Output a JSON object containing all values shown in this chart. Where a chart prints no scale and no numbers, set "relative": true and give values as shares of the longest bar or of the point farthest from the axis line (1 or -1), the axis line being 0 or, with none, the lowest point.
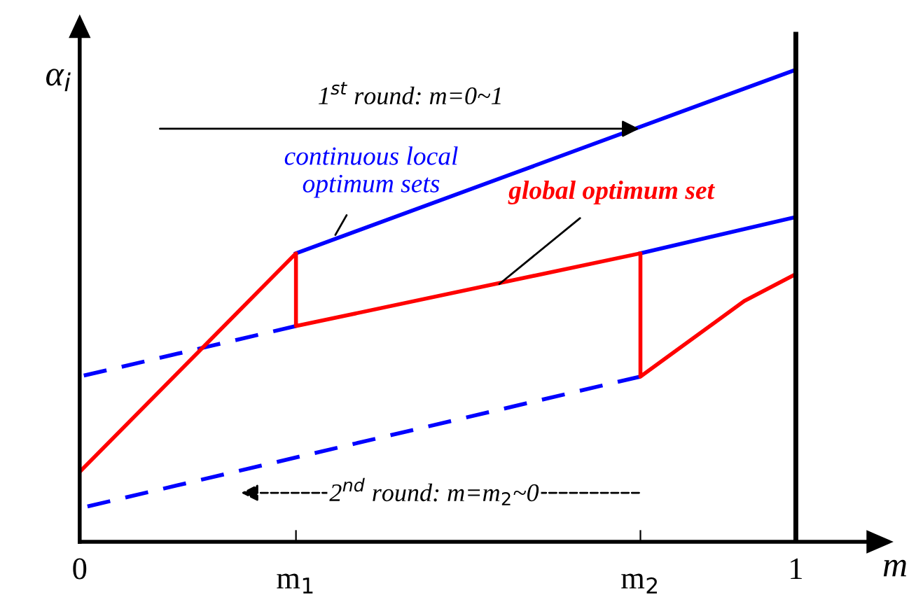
{
  "chart_data": {
    "type": "line",
    "relative": true,
    "xlabel": "m",
    "ylabel": "α$_{i}$",
    "xlim": [
      0,
      1.1
    ],
    "xticks": [
      0,
      {
        "value": 0.302,
        "label": null
      },
      {
        "value": 0.783,
        "label": null
      },
      1
    ],
    "tick_labels": "x",
    "grid": false,
    "marker": "none",
    "series": [
      {
        "color": "#0000ff",
        "line_style": "solid",
        "x": [
          0.302,
          1
        ],
        "values": [
          0.611,
          1.0
        ]
      },
      {
        "color": "#0000ff",
        "line_style": "dashed",
        "x": [
          0,
          0.302
        ],
        "values": [
          0.35,
          0.457
        ]
      },
      {
        "color": "#0000ff",
        "line_style": "solid",
        "x": [
          0.783,
          1
        ],
        "values": [
          0.611,
          0.688
        ]
      },
      {
        "color": "#0000ff",
        "line_style": "dashed",
        "x": [
          0,
          0.783
        ],
        "values": [
          0.071,
          0.35
        ]
      },
      {
        "color": "#ff0000",
        "line_style": "solid",
        "x": [
          0,
          0.302,
          0.302,
          0.783,
          0.783,
          0.928,
          1
        ],
        "values": [
          0.148,
          0.611,
          0.457,
          0.611,
          0.35,
          0.51,
          0.567
        ]
      }
    ],
    "ref_lines": [
      {
        "axis": "x",
        "value": 1,
        "color": "#000000"
      }
    ],
    "annotations": [
      "1$^{st}$ round: m=0~1",
      "2$^{nd}$ round: m=m$_{2}$~0",
      {
        "text": "continuous local\noptimum sets",
        "x": 0.357,
        "y": 0.65
      },
      {
        "text": "global optimum set",
        "x": 0.586,
        "y": 0.546
      },
      "m$_{1}$",
      "m$_{2}$"
    ]
  }
}
